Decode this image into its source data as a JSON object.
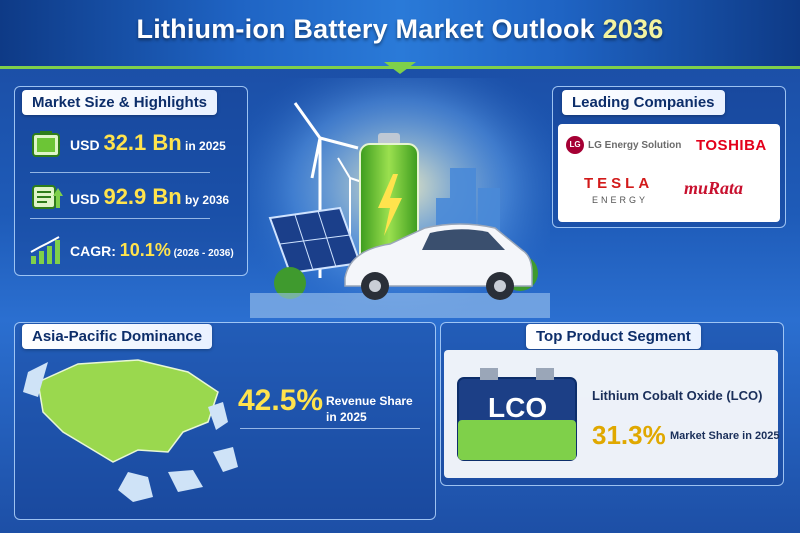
{
  "header": {
    "title_main": "Lithium-ion Battery Market Outlook ",
    "title_year": "2036"
  },
  "market": {
    "heading": "Market Size & Highlights",
    "row1": {
      "prefix": "USD ",
      "value": "32.1 Bn",
      "suffix": " in 2025"
    },
    "row2": {
      "prefix": "USD ",
      "value": "92.9 Bn",
      "suffix": " by 2036"
    },
    "row3": {
      "prefix": "CAGR: ",
      "value": "10.1%",
      "suffix": " (2026 - 2036)"
    }
  },
  "companies": {
    "heading": "Leading Companies",
    "lg": "LG Energy Solution",
    "lg_mark": "LG",
    "toshiba": "TOSHIBA",
    "tesla": "TESLA",
    "tesla_sub": "ENERGY",
    "murata": "muRata"
  },
  "asia": {
    "heading": "Asia-Pacific Dominance",
    "value": "42.5%",
    "label1": "Revenue Share",
    "label2": "in 2025"
  },
  "segment": {
    "heading": "Top Product Segment",
    "battery_label": "LCO",
    "name": "Lithium Cobalt Oxide (LCO)",
    "value": "31.3%",
    "label": "Market Share in 2025"
  },
  "colors": {
    "accent_green": "#7fd04a",
    "highlight_yellow": "#ffe34d",
    "navy": "#0d2e6a"
  },
  "icons": [
    "battery-icon",
    "battery-growth-icon",
    "bar-chart-icon",
    "wind-turbine-icon",
    "solar-panel-icon",
    "car-icon",
    "map-icon"
  ]
}
